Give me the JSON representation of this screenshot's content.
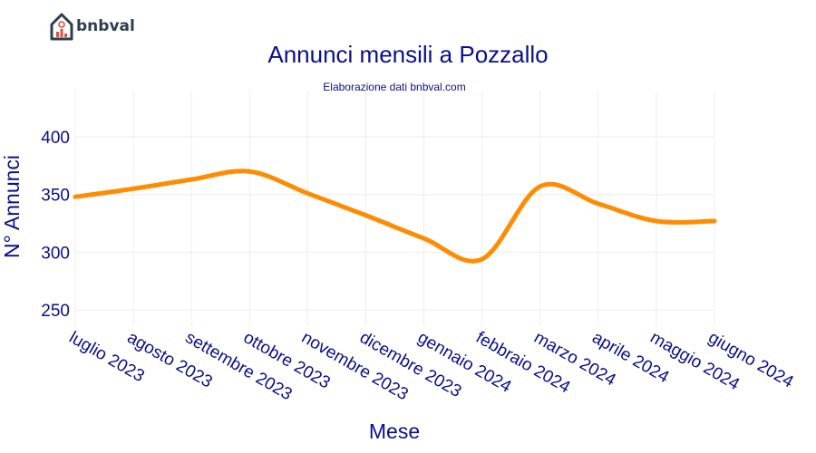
{
  "brand": {
    "name": "bnbval"
  },
  "chart_data": {
    "type": "line",
    "title": "Annunci mensili a Pozzallo",
    "subtitle": "Elaborazione dati bnbval.com",
    "xlabel": "Mese",
    "ylabel": "N° Annunci",
    "categories": [
      "luglio 2023",
      "agosto 2023",
      "settembre 2023",
      "ottobre 2023",
      "novembre 2023",
      "dicembre 2023",
      "gennaio 2024",
      "febbraio 2024",
      "marzo 2024",
      "aprile 2024",
      "maggio 2024",
      "giugno 2024"
    ],
    "series": [
      {
        "values": [
          348,
          355,
          363,
          370,
          351,
          332,
          312,
          294,
          357,
          342,
          327,
          327
        ],
        "color": "#ff8c00"
      }
    ],
    "ylim": [
      236,
      440
    ],
    "yticks": [
      250,
      300,
      350,
      400
    ],
    "grid": true,
    "legend": "none"
  }
}
